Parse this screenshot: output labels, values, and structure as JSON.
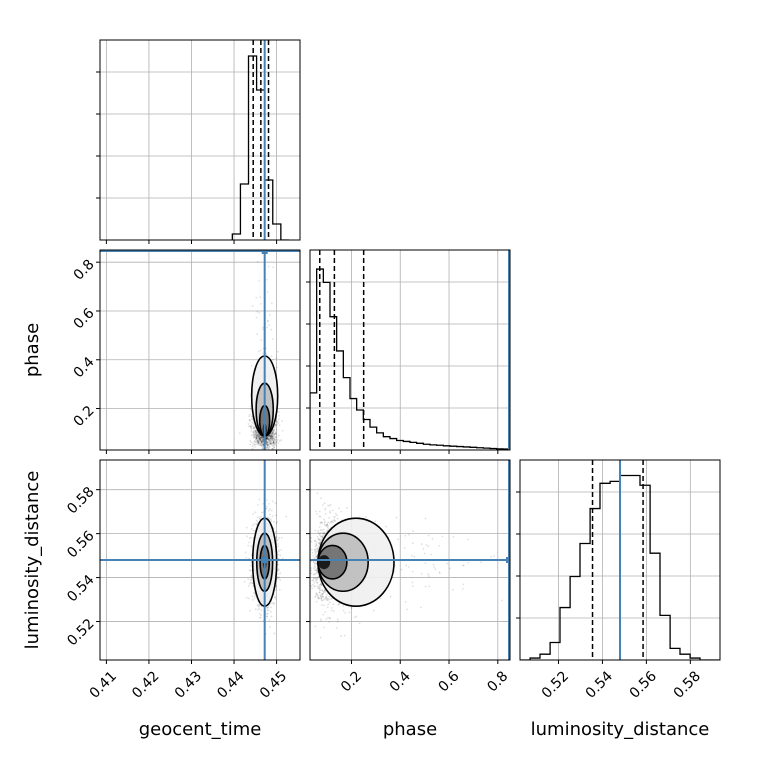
{
  "chart_data": {
    "type": "corner",
    "parameters": [
      "geocent_time",
      "phase",
      "luminosity_distance"
    ],
    "truths": {
      "geocent_time": 0.4472,
      "phase": 0.85,
      "luminosity_distance": 0.548
    },
    "truth_color": "#4682b4",
    "grid": true,
    "axes": {
      "geocent_time": {
        "range": [
          0.4085,
          0.4555
        ],
        "ticks": [
          0.41,
          0.42,
          0.43,
          0.44,
          0.45
        ],
        "tick_labels": [
          "0.41",
          "0.42",
          "0.43",
          "0.44",
          "0.45"
        ]
      },
      "phase": {
        "range": [
          0.03,
          0.85
        ],
        "ticks": [
          0.2,
          0.4,
          0.6,
          0.8
        ],
        "tick_labels": [
          "0.2",
          "0.4",
          "0.6",
          "0.8"
        ]
      },
      "luminosity_distance": {
        "range": [
          0.5025,
          0.5935
        ],
        "ticks": [
          0.52,
          0.54,
          0.56,
          0.58
        ],
        "tick_labels": [
          "0.52",
          "0.54",
          "0.56",
          "0.58"
        ]
      }
    },
    "histograms": {
      "geocent_time": {
        "bin_edges": [
          0.4396,
          0.4415,
          0.4434,
          0.4453,
          0.4472,
          0.4491,
          0.451,
          0.4529
        ],
        "counts": [
          0.03,
          0.28,
          0.92,
          0.75,
          0.3,
          0.08,
          0.0
        ],
        "quantiles": [
          0.4445,
          0.4463,
          0.4481
        ],
        "max": 1.0
      },
      "phase": {
        "bin_edges": [
          0.03,
          0.0573,
          0.0847,
          0.112,
          0.1393,
          0.1667,
          0.194,
          0.2213,
          0.2487,
          0.276,
          0.3033,
          0.3307,
          0.358,
          0.3853,
          0.4127,
          0.44,
          0.4673,
          0.4947,
          0.522,
          0.5493,
          0.5767,
          0.604,
          0.6313,
          0.6587,
          0.686,
          0.7133,
          0.7407,
          0.768,
          0.7953,
          0.8227,
          0.85
        ],
        "counts": [
          0.3,
          0.95,
          0.88,
          0.7,
          0.52,
          0.38,
          0.27,
          0.21,
          0.16,
          0.12,
          0.09,
          0.07,
          0.06,
          0.05,
          0.045,
          0.04,
          0.035,
          0.03,
          0.027,
          0.025,
          0.022,
          0.02,
          0.018,
          0.016,
          0.014,
          0.012,
          0.01,
          0.008,
          0.006,
          0.005
        ],
        "quantiles": [
          0.07,
          0.13,
          0.25
        ],
        "max": 1.05
      },
      "luminosity_distance": {
        "bin_edges": [
          0.5025,
          0.5071,
          0.5116,
          0.5162,
          0.5207,
          0.5253,
          0.5298,
          0.5344,
          0.5389,
          0.5435,
          0.548,
          0.5526,
          0.5571,
          0.5617,
          0.5662,
          0.5708,
          0.5753,
          0.5799,
          0.5844,
          0.589,
          0.5935
        ],
        "counts": [
          0.0,
          0.01,
          0.03,
          0.09,
          0.27,
          0.43,
          0.6,
          0.78,
          0.91,
          0.92,
          0.95,
          0.95,
          0.9,
          0.55,
          0.23,
          0.06,
          0.03,
          0.01,
          0.0,
          0.0
        ],
        "quantiles": [
          0.5355,
          0.548,
          0.5585
        ],
        "max": 1.03
      }
    },
    "samples_2d": {
      "geocent_time_vs_phase": {
        "x_mean": 0.4472,
        "x_sd": 0.0014,
        "y_mode": 0.09,
        "y_max": 0.85
      },
      "geocent_time_vs_luminosity_distance": {
        "x_mean": 0.4472,
        "x_sd": 0.0013,
        "y_mean": 0.547,
        "y_sd": 0.0095
      },
      "phase_vs_luminosity_distance": {
        "x_mode": 0.09,
        "x_max": 0.85,
        "y_mean": 0.547,
        "y_sd": 0.0095
      }
    }
  }
}
